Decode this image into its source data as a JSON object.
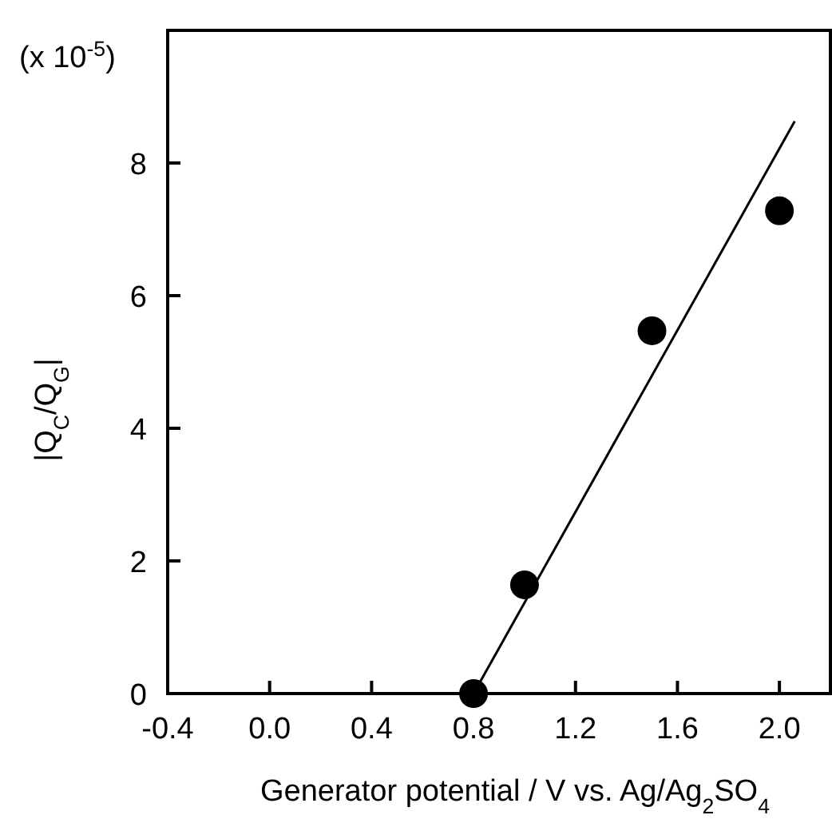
{
  "chart_data": {
    "type": "scatter",
    "xlabel": "Generator potential / V vs. Ag/Ag$_{2}$SO$_{4}$",
    "ylabel": "|Q$_{C}$/Q$_{G}$|",
    "annotations": [
      "(x 10$^{-5}$)"
    ],
    "xlim": [
      -0.4,
      2.2
    ],
    "ylim": [
      0,
      10
    ],
    "xticks": [
      {
        "value": -0.4,
        "label": "-0.4"
      },
      {
        "value": 0,
        "label": "0.0"
      },
      {
        "value": 0.4,
        "label": "0.4"
      },
      {
        "value": 0.8,
        "label": "0.8"
      },
      {
        "value": 1.2,
        "label": "1.2"
      },
      {
        "value": 1.6,
        "label": "1.6"
      },
      {
        "value": 2,
        "label": "2.0"
      }
    ],
    "yticks": [
      0,
      2,
      4,
      6,
      8
    ],
    "marker": "circle",
    "series": [
      {
        "color": "#000000",
        "x": [
          0.8,
          1.0,
          1.5,
          2.0
        ],
        "values": [
          0,
          1.64,
          5.47,
          7.28
        ]
      },
      {
        "type": "line",
        "color": "#000000",
        "line_style": "solid",
        "marker": "none",
        "x": [
          0.8,
          2.06
        ],
        "values": [
          0,
          8.63
        ]
      }
    ]
  }
}
